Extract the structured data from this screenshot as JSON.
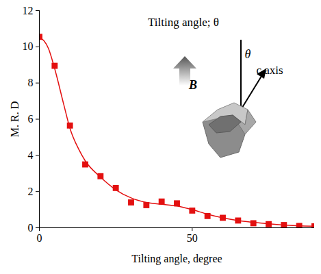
{
  "chart_data": {
    "type": "scatter",
    "x_label": "Tilting angle, degree",
    "y_label": "M. R. D",
    "xlim": [
      0,
      90
    ],
    "xticks": [
      0,
      50
    ],
    "ylim": [
      0,
      12
    ],
    "yticks": [
      0,
      2,
      4,
      6,
      8,
      10,
      12
    ],
    "grid": false,
    "annotations": [
      "Tilting angle; θ",
      "B",
      "θ",
      "c axis"
    ],
    "series": [
      {
        "type": "scatter",
        "marker": "square",
        "color": "#e31010",
        "x": [
          0,
          5,
          10,
          15,
          20,
          25,
          30,
          35,
          40,
          45,
          50,
          55,
          60,
          65,
          70,
          75,
          80,
          85,
          90
        ],
        "values": [
          10.55,
          8.95,
          5.65,
          3.5,
          2.85,
          2.2,
          1.4,
          1.25,
          1.45,
          1.35,
          0.95,
          0.65,
          0.55,
          0.4,
          0.25,
          0.2,
          0.15,
          0.1,
          0.08
        ]
      },
      {
        "type": "line",
        "line_style": "solid",
        "color": "#e31010",
        "x": [
          0,
          3,
          5,
          8,
          10,
          13,
          15,
          20,
          25,
          30,
          35,
          40,
          45,
          50,
          55,
          60,
          65,
          70,
          80,
          90
        ],
        "values": [
          10.55,
          9.9,
          8.8,
          6.8,
          5.5,
          4.3,
          3.7,
          2.8,
          2.1,
          1.65,
          1.4,
          1.3,
          1.2,
          1.0,
          0.75,
          0.55,
          0.4,
          0.3,
          0.15,
          0.08
        ]
      }
    ]
  }
}
